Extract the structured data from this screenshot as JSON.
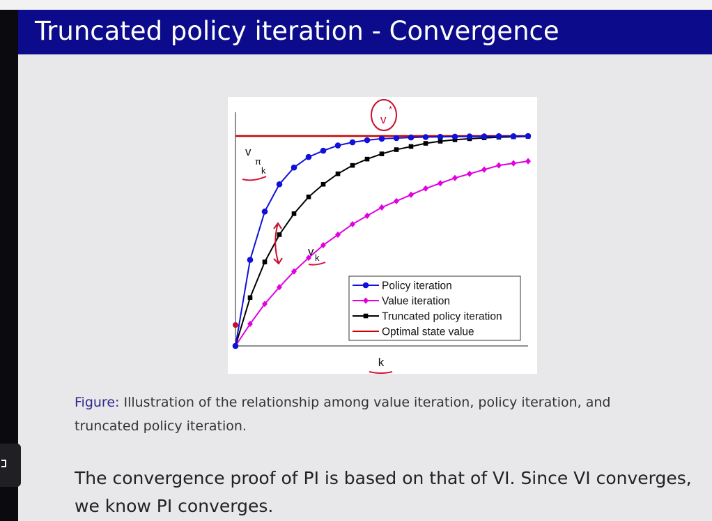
{
  "slide": {
    "title": "Truncated policy iteration - Convergence",
    "caption_label": "Figure:",
    "caption_text": "Illustration of the relationship among value iteration, policy iteration, and truncated policy iteration.",
    "body_text": "The convergence proof of PI is based on that of VI. Since VI converges, we know PI converges."
  },
  "chart_data": {
    "type": "line",
    "xlabel": "k",
    "ylabel": "",
    "x": [
      0,
      1,
      2,
      3,
      4,
      5,
      6,
      7,
      8,
      9,
      10,
      11,
      12,
      13,
      14,
      15,
      16,
      17,
      18,
      19,
      20
    ],
    "ylim": [
      0,
      1.05
    ],
    "grid": false,
    "legend_position": "bottom-right",
    "annotations": [
      {
        "text": "v",
        "superscript": "*",
        "handwritten": true
      },
      {
        "text": "v",
        "subscript_main": "π",
        "subscript_small": "k"
      },
      {
        "text": "v",
        "subscript": "k"
      }
    ],
    "series": [
      {
        "name": "Policy iteration",
        "color": "#1010d8",
        "marker": "circle",
        "values": [
          0,
          0.41,
          0.64,
          0.77,
          0.85,
          0.9,
          0.93,
          0.955,
          0.97,
          0.98,
          0.987,
          0.99,
          0.993,
          0.995,
          0.996,
          0.997,
          0.998,
          0.998,
          0.999,
          0.999,
          1.0
        ]
      },
      {
        "name": "Value iteration",
        "color": "#e000e0",
        "marker": "diamond",
        "values": [
          0,
          0.105,
          0.2,
          0.28,
          0.355,
          0.42,
          0.48,
          0.53,
          0.58,
          0.62,
          0.66,
          0.69,
          0.72,
          0.75,
          0.775,
          0.8,
          0.82,
          0.84,
          0.86,
          0.87,
          0.88
        ]
      },
      {
        "name": "Truncated policy iteration",
        "color": "#000000",
        "marker": "square",
        "values": [
          0,
          0.23,
          0.4,
          0.53,
          0.63,
          0.71,
          0.77,
          0.82,
          0.86,
          0.89,
          0.915,
          0.935,
          0.95,
          0.965,
          0.975,
          0.982,
          0.987,
          0.991,
          0.994,
          0.996,
          0.998
        ]
      },
      {
        "name": "Optimal state value",
        "color": "#cc0000",
        "marker": "none",
        "values": [
          1,
          1,
          1,
          1,
          1,
          1,
          1,
          1,
          1,
          1,
          1,
          1,
          1,
          1,
          1,
          1,
          1,
          1,
          1,
          1,
          1
        ]
      }
    ]
  }
}
